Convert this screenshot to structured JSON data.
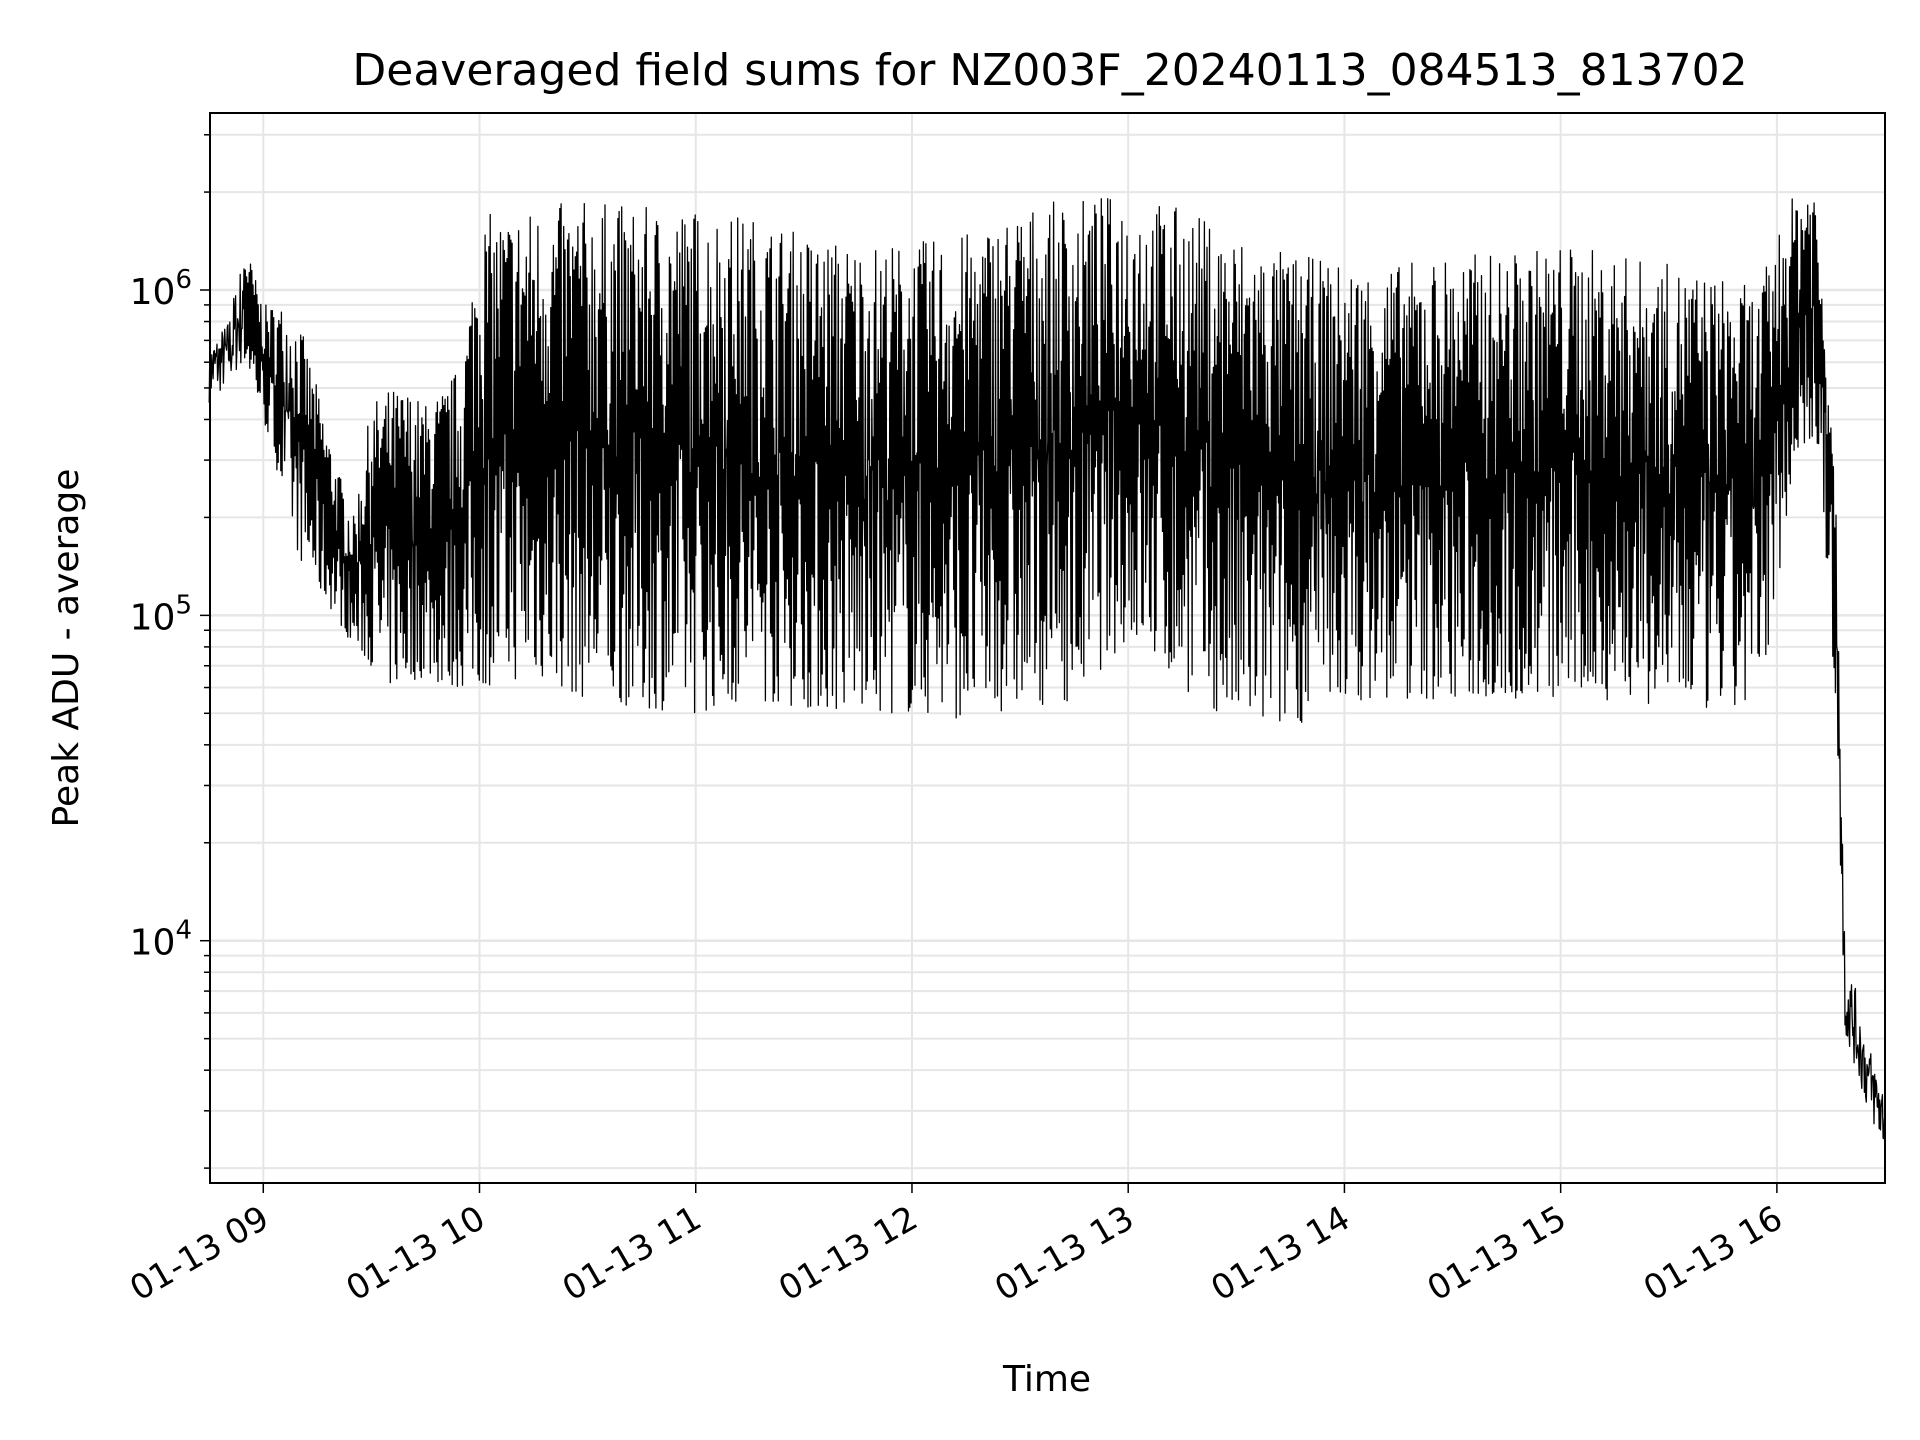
{
  "chart_data": {
    "type": "line",
    "title": "Deaveraged field sums for NZ003F_20240113_084513_813702",
    "xlabel": "Time",
    "ylabel": "Peak ADU - average",
    "yscale": "log",
    "ylim": [
      1800,
      3500000
    ],
    "xlim": [
      "2024-01-13 08:45:13",
      "2024-01-13 16:30:00"
    ],
    "grid": true,
    "legend": "none",
    "line_color": "#000000",
    "grid_color": "#e6e6e6",
    "xticks": [
      {
        "value": "2024-01-13 09:00",
        "label": "01-13 09"
      },
      {
        "value": "2024-01-13 10:00",
        "label": "01-13 10"
      },
      {
        "value": "2024-01-13 11:00",
        "label": "01-13 11"
      },
      {
        "value": "2024-01-13 12:00",
        "label": "01-13 12"
      },
      {
        "value": "2024-01-13 13:00",
        "label": "01-13 13"
      },
      {
        "value": "2024-01-13 14:00",
        "label": "01-13 14"
      },
      {
        "value": "2024-01-13 15:00",
        "label": "01-13 15"
      },
      {
        "value": "2024-01-13 16:00",
        "label": "01-13 16"
      }
    ],
    "yticks": [
      {
        "value": 10000,
        "base": "10",
        "exp": "4"
      },
      {
        "value": 100000,
        "base": "10",
        "exp": "5"
      },
      {
        "value": 1000000,
        "base": "10",
        "exp": "6"
      }
    ],
    "series": [
      {
        "note_envelope": "sampled upper/lower envelope of the dense trace",
        "x": [
          "2024-01-13 08:45",
          "2024-01-13 08:50",
          "2024-01-13 08:55",
          "2024-01-13 09:00",
          "2024-01-13 09:05",
          "2024-01-13 09:10",
          "2024-01-13 09:15",
          "2024-01-13 09:20",
          "2024-01-13 09:25",
          "2024-01-13 09:30",
          "2024-01-13 09:35",
          "2024-01-13 09:40",
          "2024-01-13 09:45",
          "2024-01-13 09:50",
          "2024-01-13 09:55",
          "2024-01-13 10:00",
          "2024-01-13 10:15",
          "2024-01-13 10:30",
          "2024-01-13 10:45",
          "2024-01-13 11:00",
          "2024-01-13 11:15",
          "2024-01-13 11:30",
          "2024-01-13 11:45",
          "2024-01-13 12:00",
          "2024-01-13 12:15",
          "2024-01-13 12:30",
          "2024-01-13 12:45",
          "2024-01-13 13:00",
          "2024-01-13 13:15",
          "2024-01-13 13:30",
          "2024-01-13 13:45",
          "2024-01-13 14:00",
          "2024-01-13 14:15",
          "2024-01-13 14:30",
          "2024-01-13 14:45",
          "2024-01-13 15:00",
          "2024-01-13 15:15",
          "2024-01-13 15:30",
          "2024-01-13 15:45",
          "2024-01-13 15:55",
          "2024-01-13 16:00",
          "2024-01-13 16:05",
          "2024-01-13 16:10",
          "2024-01-13 16:13",
          "2024-01-13 16:16",
          "2024-01-13 16:19",
          "2024-01-13 16:22",
          "2024-01-13 16:25",
          "2024-01-13 16:30"
        ],
        "high": [
          700000,
          800000,
          1400000,
          900000,
          900000,
          800000,
          500000,
          300000,
          200000,
          450000,
          500000,
          500000,
          450000,
          500000,
          600000,
          1700000,
          1800000,
          1900000,
          1800000,
          1800000,
          1700000,
          1500000,
          1400000,
          1400000,
          1500000,
          1800000,
          1900000,
          2000000,
          1800000,
          1500000,
          1300000,
          1200000,
          1200000,
          1300000,
          1300000,
          1400000,
          1300000,
          1200000,
          1100000,
          1000000,
          1500000,
          2000000,
          2400000,
          1000000,
          400000,
          9000,
          7000,
          5000,
          3500
        ],
        "low": [
          450000,
          500000,
          600000,
          400000,
          250000,
          150000,
          120000,
          100000,
          80000,
          70000,
          60000,
          62000,
          65000,
          60000,
          60000,
          60000,
          65000,
          55000,
          52000,
          50000,
          55000,
          52000,
          50000,
          50000,
          48000,
          52000,
          55000,
          85000,
          60000,
          45000,
          45000,
          55000,
          55000,
          55000,
          55000,
          55000,
          55000,
          52000,
          50000,
          52000,
          120000,
          300000,
          350000,
          200000,
          60000,
          5000,
          4000,
          3000,
          2200
        ]
      }
    ]
  }
}
